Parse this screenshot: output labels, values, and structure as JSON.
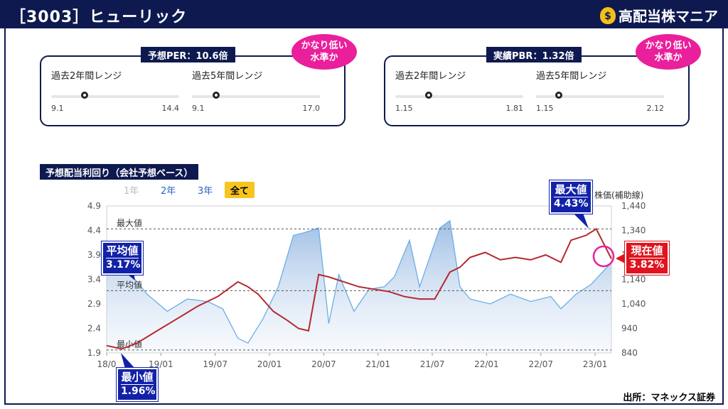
{
  "header": {
    "title": "［3003］ヒューリック",
    "brand": "高配当株マニア",
    "brand_icon": "money-bag-icon"
  },
  "per_panel": {
    "heading": "予想PER：10.6倍",
    "bubble": "かなり低い\n水準か",
    "ranges": [
      {
        "label": "過去2年間レンジ",
        "low": "9.1",
        "high": "14.4",
        "position": 0.26
      },
      {
        "label": "過去5年間レンジ",
        "low": "9.1",
        "high": "17.0",
        "position": 0.19
      }
    ]
  },
  "pbr_panel": {
    "heading": "実績PBR：1.32倍",
    "bubble": "かなり低い\n水準か",
    "ranges": [
      {
        "label": "過去2年間レンジ",
        "low": "1.15",
        "high": "1.81",
        "position": 0.26
      },
      {
        "label": "過去5年間レンジ",
        "low": "1.15",
        "high": "2.12",
        "position": 0.18
      }
    ]
  },
  "chart_section": {
    "heading": "予想配当利回り（会社予想ベース）",
    "buttons": [
      "1年",
      "2年",
      "3年",
      "全て"
    ],
    "active_button": "全て"
  },
  "callouts": {
    "max": {
      "label": "最大値",
      "value": "4.43%"
    },
    "avg": {
      "label": "平均値",
      "value": "3.17%"
    },
    "min": {
      "label": "最小値",
      "value": "1.96%"
    },
    "now": {
      "label": "現在値",
      "value": "3.82%"
    }
  },
  "source": "出所：マネックス証券",
  "colors": {
    "navy": "#0e1a4f",
    "yield_line": "#b5292e",
    "price_line": "#6aaee6",
    "accent_pink": "#ea1f9b",
    "callout_blue": "#1222a8",
    "callout_red": "#e0141e",
    "active_yellow": "#f7c51f"
  },
  "chart_data": {
    "type": "line",
    "x_tick_labels": [
      "18/0",
      "19/01",
      "19/07",
      "20/01",
      "20/07",
      "21/01",
      "21/07",
      "22/01",
      "22/07",
      "23/01"
    ],
    "left_axis": {
      "ticks": [
        "1.9",
        "2.4",
        "2.9",
        "3.4",
        "3.9",
        "4.4",
        "4.9"
      ],
      "ylim": [
        1.9,
        4.9
      ]
    },
    "right_axis": {
      "label": "株価(補助線)",
      "ticks": [
        "840",
        "940",
        "1,040",
        "1,140",
        "1,240",
        "1,340",
        "1,440"
      ],
      "ylim": [
        840,
        1440
      ]
    },
    "reference_lines": [
      {
        "label": "最大値",
        "value": 4.43
      },
      {
        "label": "平均値",
        "value": 3.17
      },
      {
        "label": "最小値",
        "value": 1.96
      }
    ],
    "series": [
      {
        "axis": "left",
        "x": [
          0,
          0.03,
          0.06,
          0.1,
          0.14,
          0.18,
          0.22,
          0.26,
          0.28,
          0.3,
          0.33,
          0.36,
          0.38,
          0.4,
          0.42,
          0.44,
          0.47,
          0.5,
          0.53,
          0.56,
          0.59,
          0.62,
          0.65,
          0.68,
          0.7,
          0.72,
          0.75,
          0.78,
          0.81,
          0.84,
          0.87,
          0.9,
          0.92,
          0.95,
          0.97,
          1.0
        ],
        "values": [
          2.05,
          1.98,
          2.1,
          2.35,
          2.6,
          2.85,
          3.05,
          3.35,
          3.25,
          3.1,
          2.75,
          2.55,
          2.4,
          2.35,
          3.5,
          3.45,
          3.35,
          3.25,
          3.2,
          3.15,
          3.05,
          3.0,
          3.0,
          3.55,
          3.65,
          3.85,
          3.95,
          3.8,
          3.85,
          3.8,
          3.9,
          3.75,
          4.2,
          4.3,
          4.43,
          3.82
        ]
      },
      {
        "axis": "right",
        "x": [
          0,
          0.04,
          0.08,
          0.12,
          0.16,
          0.2,
          0.23,
          0.26,
          0.28,
          0.31,
          0.34,
          0.37,
          0.39,
          0.42,
          0.44,
          0.46,
          0.49,
          0.52,
          0.55,
          0.57,
          0.6,
          0.62,
          0.66,
          0.68,
          0.7,
          0.72,
          0.76,
          0.8,
          0.84,
          0.88,
          0.9,
          0.93,
          0.96,
          1.0
        ],
        "values": [
          1200,
          1180,
          1080,
          1010,
          1060,
          1050,
          1020,
          900,
          880,
          980,
          1110,
          1320,
          1330,
          1350,
          960,
          1160,
          1010,
          1100,
          1110,
          1150,
          1300,
          1110,
          1350,
          1380,
          1110,
          1060,
          1040,
          1080,
          1050,
          1070,
          1020,
          1080,
          1120,
          1210
        ]
      }
    ]
  }
}
